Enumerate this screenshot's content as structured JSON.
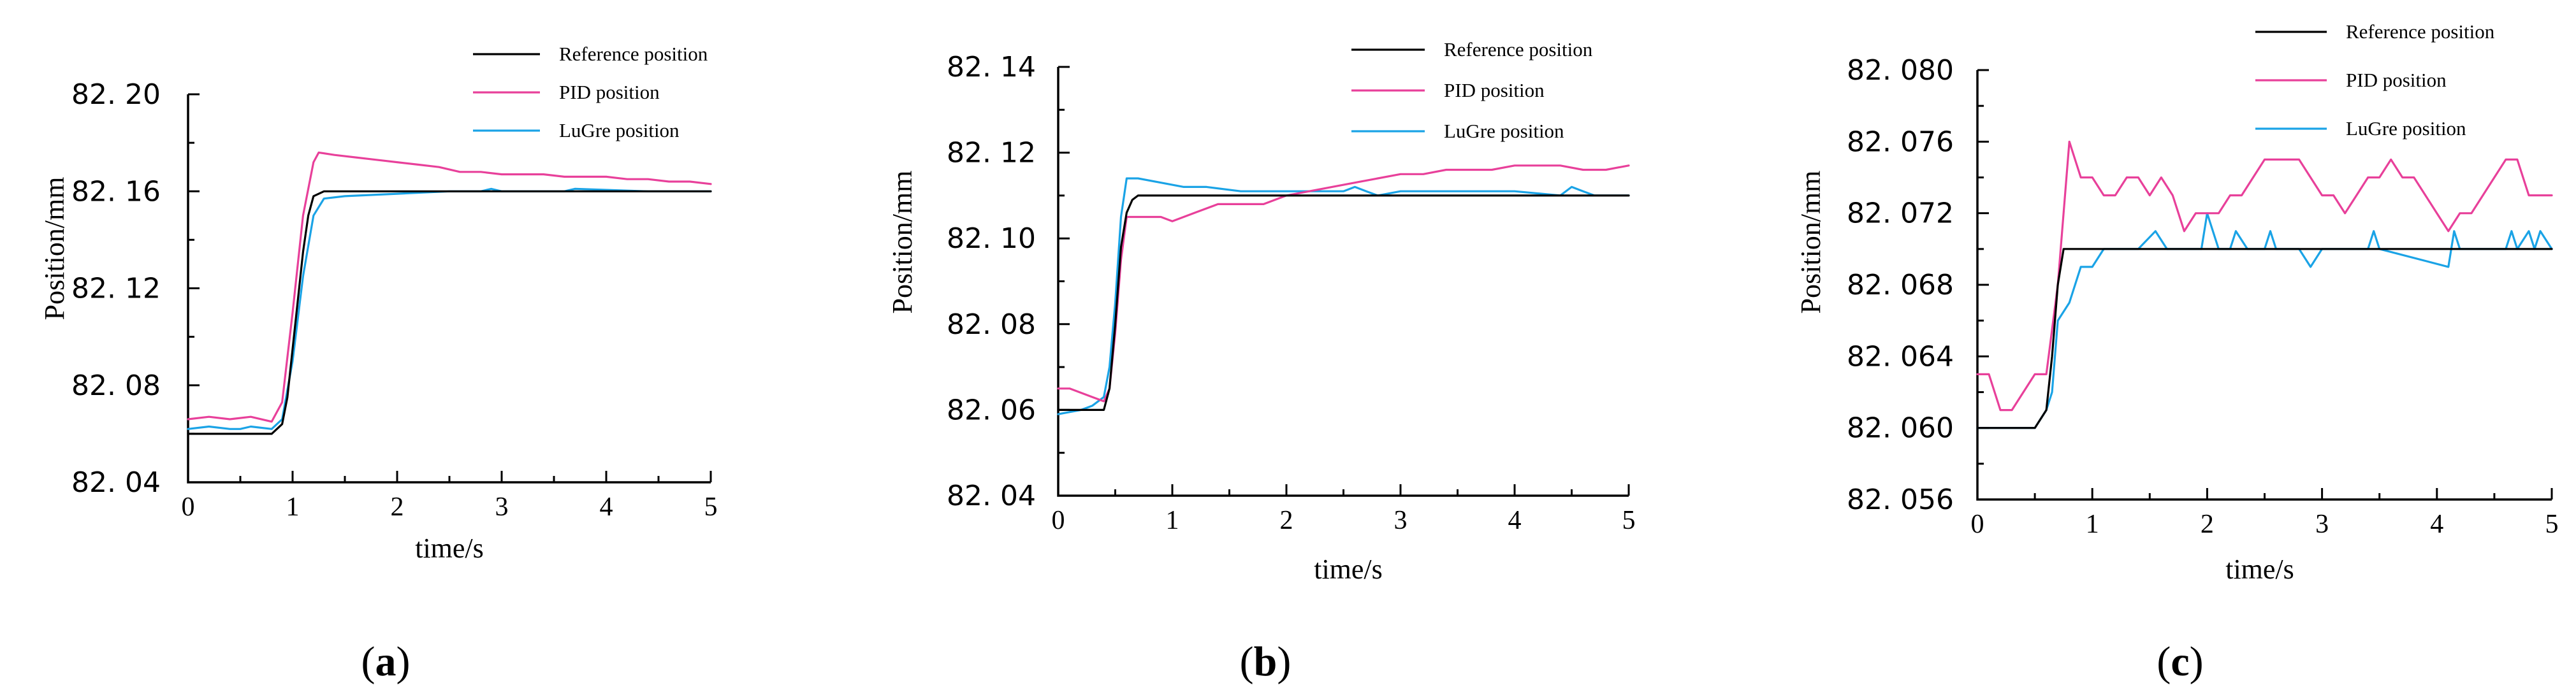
{
  "chart_data": [
    {
      "id": "a",
      "type": "line",
      "caption_letter": "a",
      "caption_open": "(",
      "caption_close": ")",
      "xlabel": "time/s",
      "ylabel": "Position/mm",
      "xlim": [
        0,
        5
      ],
      "ylim": [
        82.04,
        82.2
      ],
      "xticks": [
        0,
        1,
        2,
        3,
        4,
        5
      ],
      "xtick_labels": [
        "0",
        "1",
        "2",
        "3",
        "4",
        "5"
      ],
      "yticks": [
        82.04,
        82.08,
        82.12,
        82.16,
        82.2
      ],
      "ytick_labels": [
        "82. 04",
        "82. 08",
        "82. 12",
        "82. 16",
        "82. 20"
      ],
      "series": [
        {
          "name": "Reference position",
          "color": "#000000",
          "x": [
            0,
            0.8,
            0.9,
            0.95,
            1.0,
            1.05,
            1.1,
            1.15,
            1.2,
            1.3,
            5
          ],
          "y": [
            82.06,
            82.06,
            82.064,
            82.075,
            82.095,
            82.115,
            82.135,
            82.15,
            82.158,
            82.16,
            82.16
          ]
        },
        {
          "name": "PID position",
          "color": "#e8409a",
          "x": [
            0,
            0.2,
            0.4,
            0.6,
            0.8,
            0.9,
            1.0,
            1.1,
            1.2,
            1.25,
            1.4,
            1.6,
            1.8,
            2.0,
            2.2,
            2.4,
            2.6,
            2.8,
            3.0,
            3.2,
            3.4,
            3.6,
            3.8,
            4.0,
            4.2,
            4.4,
            4.6,
            4.8,
            5.0
          ],
          "y": [
            82.066,
            82.067,
            82.066,
            82.067,
            82.065,
            82.073,
            82.11,
            82.15,
            82.172,
            82.176,
            82.175,
            82.174,
            82.173,
            82.172,
            82.171,
            82.17,
            82.168,
            82.168,
            82.167,
            82.167,
            82.167,
            82.166,
            82.166,
            82.166,
            82.165,
            82.165,
            82.164,
            82.164,
            82.163
          ]
        },
        {
          "name": "LuGre position",
          "color": "#1aa3e6",
          "x": [
            0,
            0.2,
            0.4,
            0.5,
            0.6,
            0.8,
            0.9,
            1.0,
            1.1,
            1.2,
            1.3,
            1.5,
            2.0,
            2.5,
            2.8,
            2.9,
            3.0,
            3.6,
            3.7,
            4.4,
            5.0
          ],
          "y": [
            82.062,
            82.063,
            82.062,
            82.062,
            82.063,
            82.062,
            82.066,
            82.09,
            82.125,
            82.15,
            82.157,
            82.158,
            82.159,
            82.16,
            82.16,
            82.161,
            82.16,
            82.16,
            82.161,
            82.16,
            82.16
          ]
        }
      ],
      "legend_position": "top-right"
    },
    {
      "id": "b",
      "type": "line",
      "caption_letter": "b",
      "caption_open": "(",
      "caption_close": ")",
      "xlabel": "time/s",
      "ylabel": "Position/mm",
      "xlim": [
        0,
        5
      ],
      "ylim": [
        82.04,
        82.14
      ],
      "xticks": [
        0,
        1,
        2,
        3,
        4,
        5
      ],
      "xtick_labels": [
        "0",
        "1",
        "2",
        "3",
        "4",
        "5"
      ],
      "yticks": [
        82.04,
        82.06,
        82.08,
        82.1,
        82.12,
        82.14
      ],
      "ytick_labels": [
        "82. 04",
        "82. 06",
        "82. 08",
        "82. 10",
        "82. 12",
        "82. 14"
      ],
      "series": [
        {
          "name": "Reference position",
          "color": "#000000",
          "x": [
            0,
            0.4,
            0.45,
            0.5,
            0.55,
            0.6,
            0.65,
            0.7,
            5
          ],
          "y": [
            82.06,
            82.06,
            82.065,
            82.08,
            82.098,
            82.106,
            82.109,
            82.11,
            82.11
          ]
        },
        {
          "name": "PID position",
          "color": "#e8409a",
          "x": [
            0,
            0.1,
            0.2,
            0.3,
            0.4,
            0.45,
            0.5,
            0.55,
            0.6,
            0.65,
            0.7,
            0.9,
            1.0,
            1.2,
            1.4,
            1.6,
            1.8,
            2.0,
            2.2,
            2.4,
            2.6,
            2.8,
            3.0,
            3.2,
            3.4,
            3.6,
            3.8,
            4.0,
            4.2,
            4.4,
            4.6,
            4.8,
            5.0
          ],
          "y": [
            82.065,
            82.065,
            82.064,
            82.063,
            82.062,
            82.065,
            82.078,
            82.095,
            82.105,
            82.105,
            82.105,
            82.105,
            82.104,
            82.106,
            82.108,
            82.108,
            82.108,
            82.11,
            82.111,
            82.112,
            82.113,
            82.114,
            82.115,
            82.115,
            82.116,
            82.116,
            82.116,
            82.117,
            82.117,
            82.117,
            82.116,
            82.116,
            82.117
          ]
        },
        {
          "name": "LuGre position",
          "color": "#1aa3e6",
          "x": [
            0,
            0.2,
            0.3,
            0.4,
            0.45,
            0.5,
            0.55,
            0.6,
            0.7,
            0.9,
            1.1,
            1.3,
            1.6,
            1.9,
            2.2,
            2.5,
            2.6,
            2.7,
            2.8,
            3.0,
            3.5,
            4.0,
            4.4,
            4.5,
            4.6,
            4.7,
            5.0
          ],
          "y": [
            82.059,
            82.06,
            82.061,
            82.063,
            82.07,
            82.085,
            82.105,
            82.114,
            82.114,
            82.113,
            82.112,
            82.112,
            82.111,
            82.111,
            82.111,
            82.111,
            82.112,
            82.111,
            82.11,
            82.111,
            82.111,
            82.111,
            82.11,
            82.112,
            82.111,
            82.11,
            82.11
          ]
        }
      ],
      "legend_position": "top-right"
    },
    {
      "id": "c",
      "type": "line",
      "caption_letter": "c",
      "caption_open": "(",
      "caption_close": ")",
      "xlabel": "time/s",
      "ylabel": "Position/mm",
      "xlim": [
        0,
        5
      ],
      "ylim": [
        82.056,
        82.08
      ],
      "xticks": [
        0,
        1,
        2,
        3,
        4,
        5
      ],
      "xtick_labels": [
        "0",
        "1",
        "2",
        "3",
        "4",
        "5"
      ],
      "yticks": [
        82.056,
        82.06,
        82.064,
        82.068,
        82.072,
        82.076,
        82.08
      ],
      "ytick_labels": [
        "82. 056",
        "82. 060",
        "82. 064",
        "82. 068",
        "82. 072",
        "82. 076",
        "82. 080"
      ],
      "series": [
        {
          "name": "Reference position",
          "color": "#000000",
          "x": [
            0,
            0.5,
            0.6,
            0.65,
            0.7,
            0.75,
            5
          ],
          "y": [
            82.06,
            82.06,
            82.061,
            82.064,
            82.068,
            82.07,
            82.07
          ]
        },
        {
          "name": "PID position",
          "color": "#e8409a",
          "x": [
            0,
            0.1,
            0.2,
            0.3,
            0.4,
            0.5,
            0.6,
            0.7,
            0.8,
            0.9,
            1.0,
            1.1,
            1.2,
            1.3,
            1.4,
            1.5,
            1.6,
            1.7,
            1.8,
            1.9,
            2.0,
            2.1,
            2.2,
            2.3,
            2.4,
            2.5,
            2.6,
            2.7,
            2.8,
            2.9,
            3.0,
            3.1,
            3.2,
            3.3,
            3.4,
            3.5,
            3.6,
            3.7,
            3.8,
            3.9,
            4.0,
            4.1,
            4.2,
            4.3,
            4.4,
            4.5,
            4.6,
            4.7,
            4.8,
            4.9,
            5.0
          ],
          "y": [
            82.063,
            82.063,
            82.061,
            82.061,
            82.062,
            82.063,
            82.063,
            82.068,
            82.076,
            82.074,
            82.074,
            82.073,
            82.073,
            82.074,
            82.074,
            82.073,
            82.074,
            82.073,
            82.071,
            82.072,
            82.072,
            82.072,
            82.073,
            82.073,
            82.074,
            82.075,
            82.075,
            82.075,
            82.075,
            82.074,
            82.073,
            82.073,
            82.072,
            82.073,
            82.074,
            82.074,
            82.075,
            82.074,
            82.074,
            82.073,
            82.072,
            82.071,
            82.072,
            82.072,
            82.073,
            82.074,
            82.075,
            82.075,
            82.073,
            82.073,
            82.073
          ]
        },
        {
          "name": "LuGre position",
          "color": "#1aa3e6",
          "x": [
            0,
            0.5,
            0.6,
            0.65,
            0.7,
            0.8,
            0.9,
            1.0,
            1.1,
            1.2,
            1.4,
            1.55,
            1.65,
            1.75,
            1.95,
            2.0,
            2.1,
            2.2,
            2.25,
            2.35,
            2.5,
            2.55,
            2.6,
            2.8,
            2.9,
            3.0,
            3.2,
            3.4,
            3.45,
            3.5,
            4.1,
            4.15,
            4.2,
            4.6,
            4.65,
            4.7,
            4.8,
            4.85,
            4.9,
            5.0
          ],
          "y": [
            82.06,
            82.06,
            82.061,
            82.062,
            82.066,
            82.067,
            82.069,
            82.069,
            82.07,
            82.07,
            82.07,
            82.071,
            82.07,
            82.07,
            82.07,
            82.072,
            82.07,
            82.07,
            82.071,
            82.07,
            82.07,
            82.071,
            82.07,
            82.07,
            82.069,
            82.07,
            82.07,
            82.07,
            82.071,
            82.07,
            82.069,
            82.071,
            82.07,
            82.07,
            82.071,
            82.07,
            82.071,
            82.07,
            82.071,
            82.07
          ]
        }
      ],
      "legend_position": "top-right"
    }
  ]
}
